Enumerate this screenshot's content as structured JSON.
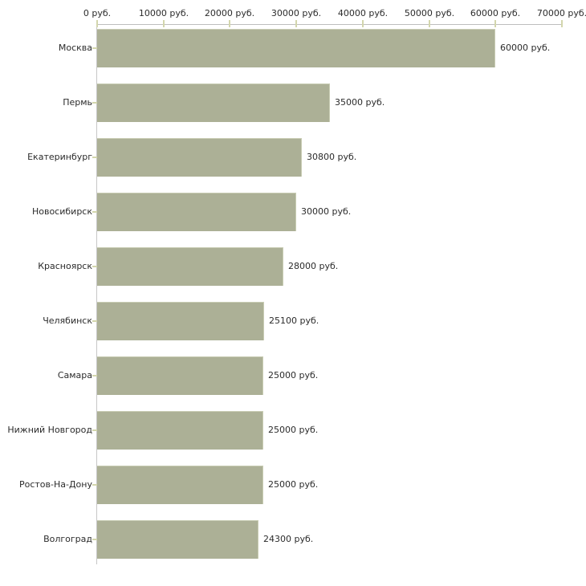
{
  "chart_data": {
    "type": "bar",
    "orientation": "horizontal",
    "categories": [
      "Москва",
      "Пермь",
      "Екатеринбург",
      "Новосибирск",
      "Красноярск",
      "Челябинск",
      "Самара",
      "Нижний Новгород",
      "Ростов-На-Дону",
      "Волгоград"
    ],
    "values": [
      60000,
      35000,
      30800,
      30000,
      28000,
      25100,
      25000,
      25000,
      25000,
      24300
    ],
    "value_labels": [
      "60000 руб.",
      "35000 руб.",
      "30800 руб.",
      "30000 руб.",
      "28000 руб.",
      "25100 руб.",
      "25000 руб.",
      "25000 руб.",
      "25000 руб.",
      "24300 руб."
    ],
    "x_axis": {
      "position": "top",
      "min": 0,
      "max": 70000,
      "tick_values": [
        0,
        10000,
        20000,
        30000,
        40000,
        50000,
        60000,
        70000
      ],
      "tick_labels": [
        "0 руб.",
        "10000 руб.",
        "20000 руб.",
        "30000 руб.",
        "40000 руб.",
        "50000 руб.",
        "60000 руб.",
        "70000 руб."
      ]
    },
    "grid": false,
    "legend": null,
    "title": ""
  },
  "colors": {
    "background": "#ffffff",
    "bar_fill": "#acb096",
    "bar_edge_highlight": "#c9cdb4",
    "value_axis_line": "#bdbdbd",
    "category_axis_line": "#c6c6c6",
    "tick_mark": "#d3d6ad",
    "text": "#2b2b2b"
  }
}
